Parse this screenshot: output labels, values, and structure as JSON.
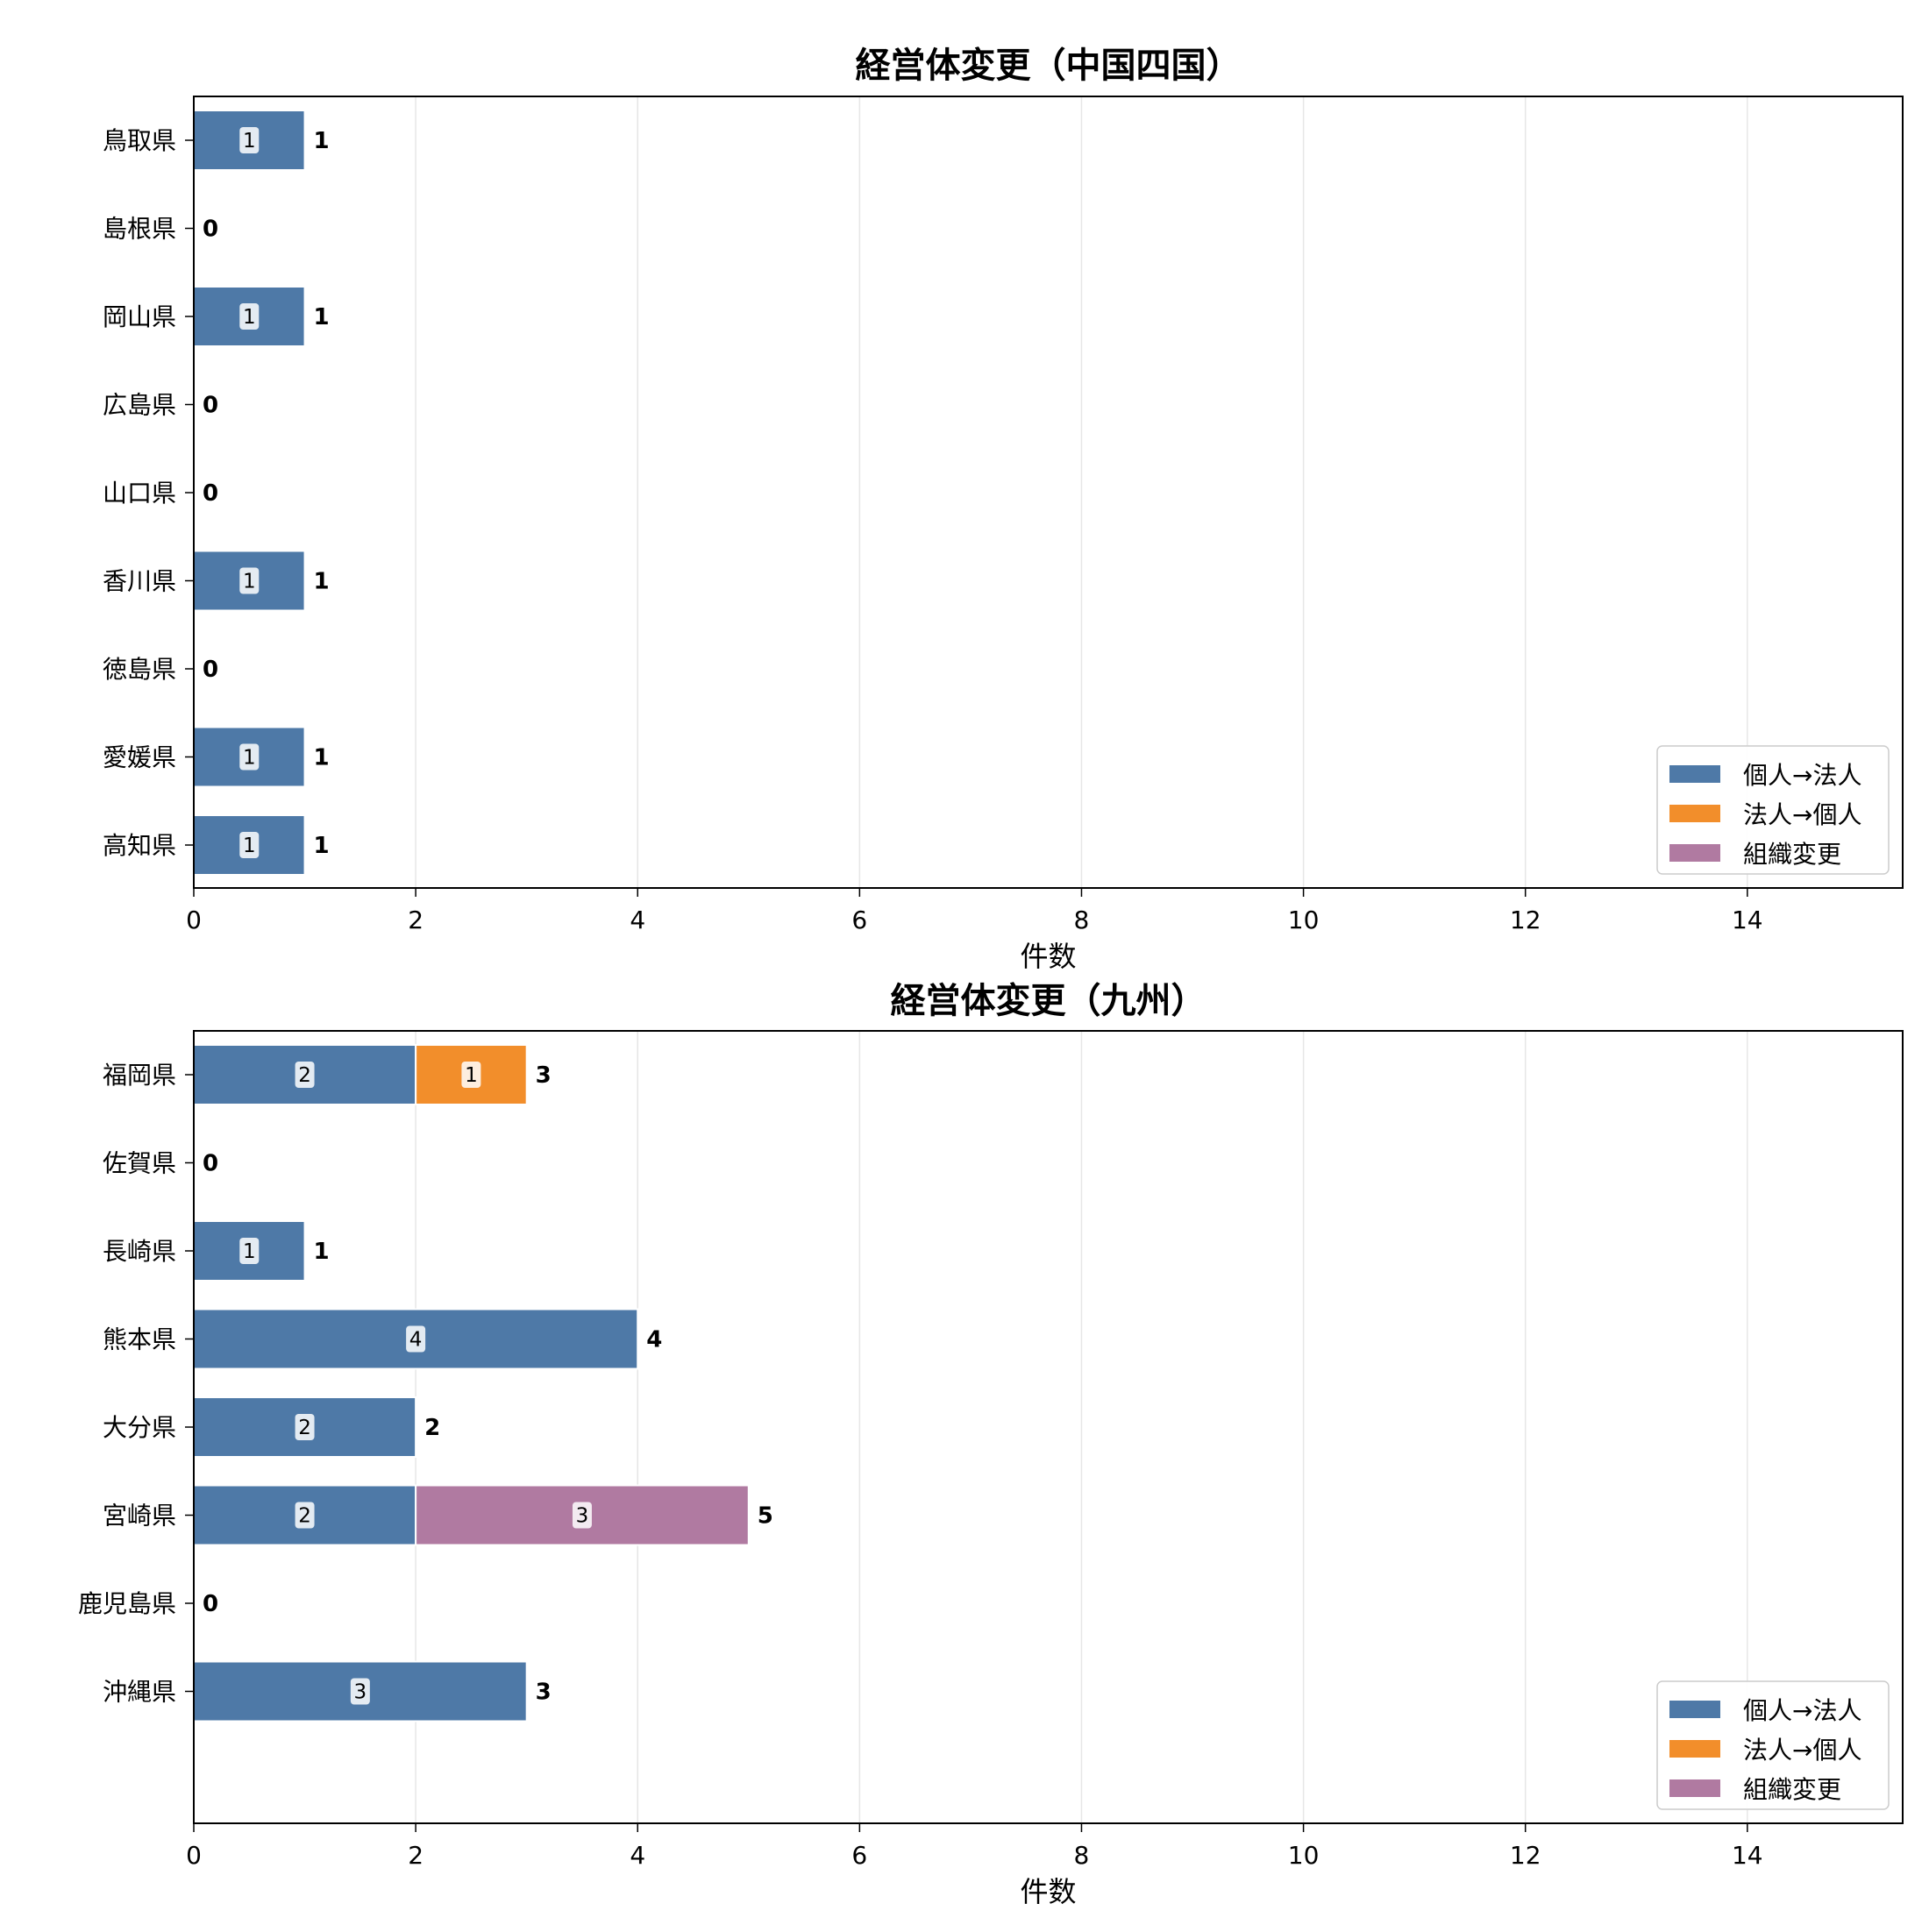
{
  "colors": {
    "series": [
      "#4e79a7",
      "#f28e2b",
      "#b07aa1"
    ],
    "grid": "#e6e6e6",
    "axis": "#000000",
    "bar_edge": "#ffffff",
    "label_box": "#ffffff",
    "legend_border": "#cccccc"
  },
  "chart_data": [
    {
      "type": "bar",
      "orientation": "horizontal",
      "stacked": true,
      "title": "経営体変更（中国四国）",
      "xlabel": "件数",
      "ylabel": "",
      "xlim": [
        0,
        15.4
      ],
      "xticks": [
        "0",
        "2",
        "4",
        "6",
        "8",
        "10",
        "12",
        "14"
      ],
      "grid": "x",
      "legend_position": "lower-right",
      "categories": [
        "鳥取県",
        "島根県",
        "岡山県",
        "広島県",
        "山口県",
        "香川県",
        "徳島県",
        "愛媛県",
        "高知県"
      ],
      "series": [
        {
          "name": "個人→法人",
          "values": [
            1,
            0,
            1,
            0,
            0,
            1,
            0,
            1,
            1
          ]
        },
        {
          "name": "法人→個人",
          "values": [
            0,
            0,
            0,
            0,
            0,
            0,
            0,
            0,
            0
          ]
        },
        {
          "name": "組織変更",
          "values": [
            0,
            0,
            0,
            0,
            0,
            0,
            0,
            0,
            0
          ]
        }
      ],
      "totals": [
        "1",
        "0",
        "1",
        "0",
        "0",
        "1",
        "0",
        "1",
        "1"
      ]
    },
    {
      "type": "bar",
      "orientation": "horizontal",
      "stacked": true,
      "title": "経営体変更（九州）",
      "xlabel": "件数",
      "ylabel": "",
      "xlim": [
        0,
        15.4
      ],
      "xticks": [
        "0",
        "2",
        "4",
        "6",
        "8",
        "10",
        "12",
        "14"
      ],
      "grid": "x",
      "legend_position": "lower-right",
      "categories": [
        "福岡県",
        "佐賀県",
        "長崎県",
        "熊本県",
        "大分県",
        "宮崎県",
        "鹿児島県",
        "沖縄県"
      ],
      "series": [
        {
          "name": "個人→法人",
          "values": [
            2,
            0,
            1,
            4,
            2,
            2,
            0,
            3
          ]
        },
        {
          "name": "法人→個人",
          "values": [
            1,
            0,
            0,
            0,
            0,
            0,
            0,
            0
          ]
        },
        {
          "name": "組織変更",
          "values": [
            0,
            0,
            0,
            0,
            0,
            3,
            0,
            0
          ]
        }
      ],
      "totals": [
        "3",
        "0",
        "1",
        "4",
        "2",
        "5",
        "0",
        "3"
      ]
    }
  ]
}
